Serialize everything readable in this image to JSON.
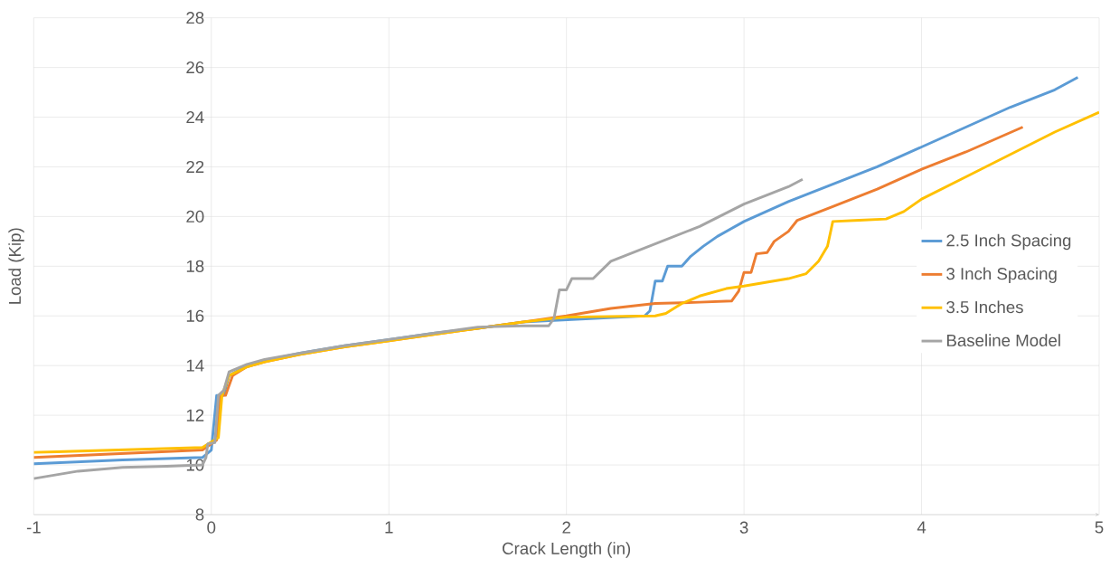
{
  "chart_data": {
    "type": "line",
    "xlabel": "Crack Length (in)",
    "ylabel": "Load (Kip)",
    "xlim": [
      -1,
      5
    ],
    "ylim": [
      8,
      28
    ],
    "xticks": [
      -1,
      0,
      1,
      2,
      3,
      4,
      5
    ],
    "yticks": [
      8,
      10,
      12,
      14,
      16,
      18,
      20,
      22,
      24,
      26,
      28
    ],
    "grid": true,
    "legend": "right",
    "marker": "none",
    "line_style": "solid",
    "series": [
      {
        "name": "2.5 Inch Spacing",
        "color": "#5b9bd5",
        "x": [
          -1,
          -0.5,
          -0.05,
          0,
          0.03,
          0.07,
          0.1,
          0.2,
          0.3,
          0.5,
          0.75,
          1,
          1.25,
          1.5,
          1.75,
          2.44,
          2.47,
          2.5,
          2.54,
          2.57,
          2.65,
          2.7,
          2.77,
          2.85,
          3.0,
          3.25,
          3.5,
          3.75,
          4.0,
          4.25,
          4.5,
          4.75,
          4.88
        ],
        "values": [
          10.05,
          10.2,
          10.3,
          10.6,
          12.8,
          12.8,
          13.6,
          14.0,
          14.2,
          14.5,
          14.8,
          15.05,
          15.3,
          15.5,
          15.75,
          16.0,
          16.2,
          17.4,
          17.4,
          18.0,
          18.0,
          18.4,
          18.8,
          19.2,
          19.8,
          20.6,
          21.3,
          22.0,
          22.8,
          23.6,
          24.4,
          25.1,
          25.6
        ]
      },
      {
        "name": "3 Inch Spacing",
        "color": "#ed7d31",
        "x": [
          -1,
          -0.05,
          0.03,
          0.05,
          0.08,
          0.12,
          0.2,
          0.3,
          0.5,
          0.75,
          1,
          1.25,
          1.5,
          1.75,
          2.0,
          2.25,
          2.5,
          2.75,
          2.93,
          2.97,
          3.0,
          3.04,
          3.07,
          3.13,
          3.17,
          3.25,
          3.3,
          3.5,
          3.75,
          4.0,
          4.25,
          4.57
        ],
        "values": [
          10.3,
          10.6,
          11.0,
          12.8,
          12.8,
          13.6,
          13.95,
          14.15,
          14.45,
          14.75,
          15.0,
          15.25,
          15.5,
          15.75,
          16.0,
          16.3,
          16.5,
          16.55,
          16.6,
          17.0,
          17.75,
          17.75,
          18.5,
          18.55,
          19.0,
          19.4,
          19.85,
          20.4,
          21.1,
          21.9,
          22.6,
          23.6
        ]
      },
      {
        "name": "3.5 Inches",
        "color": "#ffc000",
        "x": [
          -1,
          -0.05,
          0.04,
          0.06,
          0.1,
          0.2,
          0.3,
          0.5,
          0.75,
          1,
          1.25,
          1.5,
          1.75,
          2.0,
          2.5,
          2.56,
          2.65,
          2.75,
          2.9,
          3.0,
          3.25,
          3.35,
          3.42,
          3.47,
          3.5,
          3.65,
          3.8,
          3.9,
          4.0,
          4.25,
          4.5,
          4.75,
          5.0
        ],
        "values": [
          10.5,
          10.7,
          11.1,
          12.8,
          13.6,
          13.95,
          14.15,
          14.45,
          14.75,
          15.0,
          15.25,
          15.5,
          15.75,
          15.95,
          16.0,
          16.1,
          16.5,
          16.8,
          17.1,
          17.2,
          17.5,
          17.7,
          18.2,
          18.8,
          19.8,
          19.85,
          19.9,
          20.2,
          20.7,
          21.6,
          22.5,
          23.4,
          24.2
        ]
      },
      {
        "name": "Baseline Model",
        "color": "#a5a5a5",
        "x": [
          -1,
          -0.75,
          -0.5,
          -0.25,
          -0.05,
          -0.03,
          -0.02,
          0.02,
          0.04,
          0.07,
          0.1,
          0.2,
          0.3,
          0.5,
          0.75,
          1,
          1.25,
          1.5,
          1.75,
          1.9,
          1.93,
          1.96,
          2.0,
          2.03,
          2.15,
          2.25,
          2.5,
          2.75,
          3.0,
          3.25,
          3.33
        ],
        "values": [
          9.45,
          9.75,
          9.9,
          9.95,
          10.0,
          10.3,
          10.85,
          10.9,
          12.8,
          13.0,
          13.75,
          14.05,
          14.25,
          14.5,
          14.8,
          15.05,
          15.3,
          15.55,
          15.6,
          15.6,
          15.9,
          17.05,
          17.05,
          17.5,
          17.5,
          18.2,
          18.9,
          19.6,
          20.5,
          21.2,
          21.5
        ]
      }
    ]
  }
}
